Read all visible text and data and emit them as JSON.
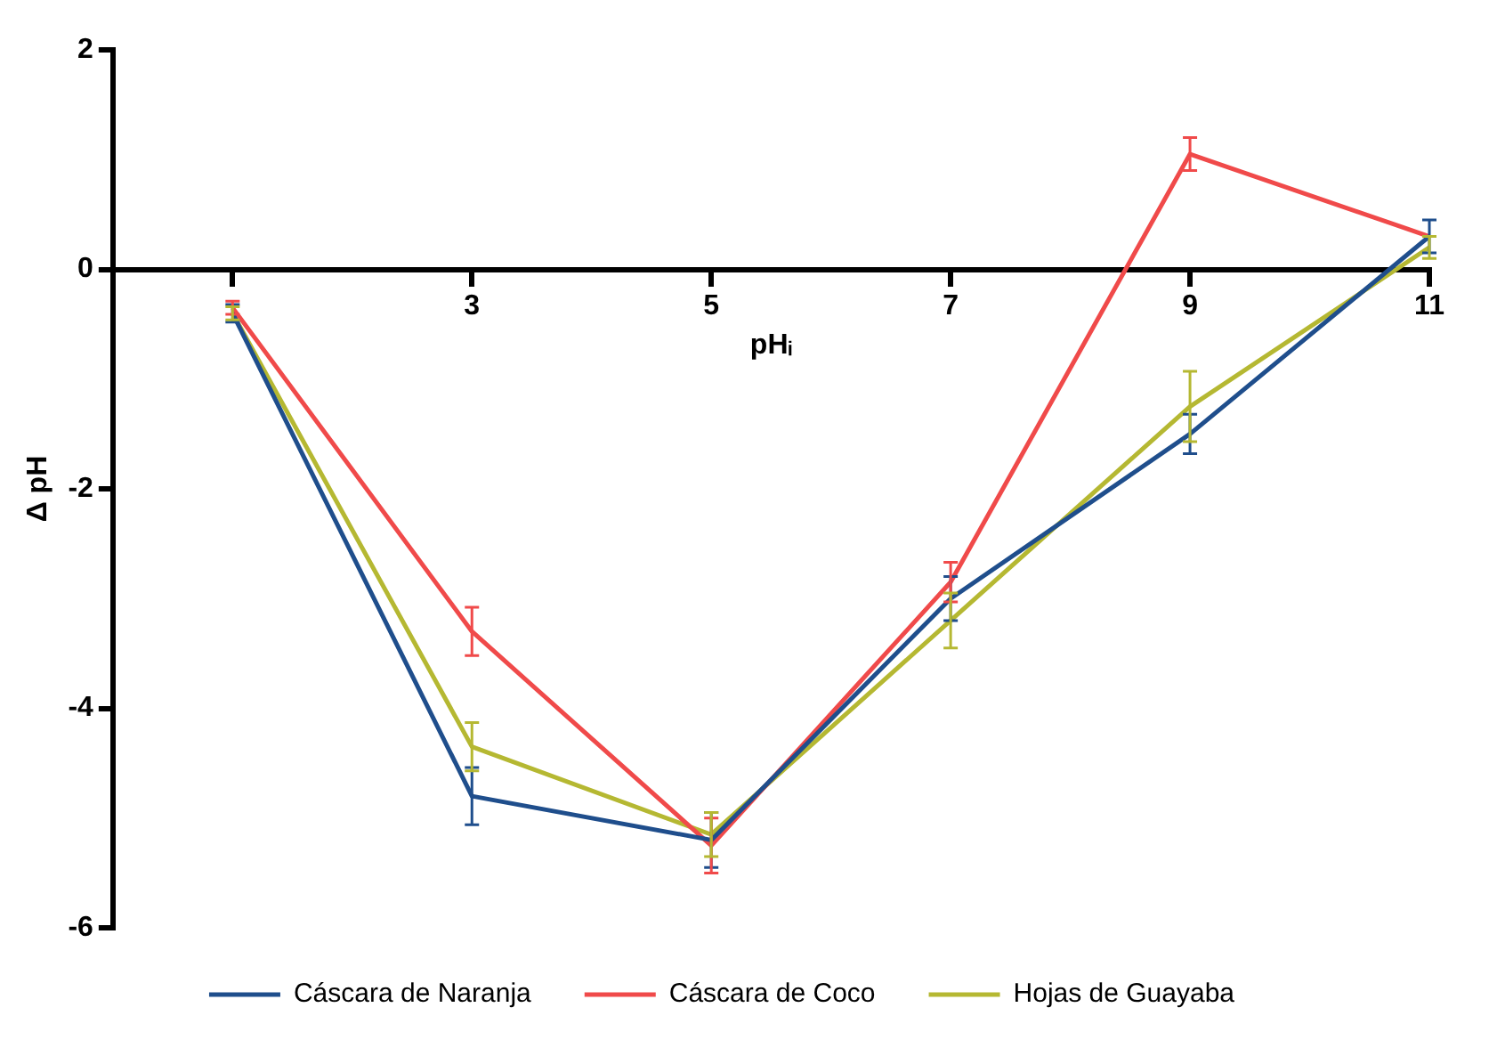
{
  "chart_data": {
    "type": "line",
    "xlabel": "pHᵢ",
    "ylabel": "Δ pH",
    "x": [
      1,
      3,
      5,
      7,
      9,
      11
    ],
    "xlim": [
      0,
      11
    ],
    "xticks": [
      {
        "value": 1,
        "label": null
      },
      3,
      5,
      7,
      9,
      11
    ],
    "ylim": [
      -6,
      2
    ],
    "yticks": [
      -6,
      -4,
      -2,
      0,
      2
    ],
    "grid": false,
    "legend": "bottom",
    "marker": "none",
    "line_style": "solid",
    "series": [
      {
        "name": "Cáscara de Naranja",
        "color": "#1f4e8c",
        "values": [
          -0.4,
          -4.8,
          -5.2,
          -3.0,
          -1.5,
          0.3
        ],
        "errors": [
          0.08,
          0.26,
          0.25,
          0.2,
          0.18,
          0.15
        ]
      },
      {
        "name": "Cáscara de Coco",
        "color": "#f04a4a",
        "values": [
          -0.35,
          -3.3,
          -5.25,
          -2.85,
          1.05,
          0.3
        ],
        "errors": [
          0.06,
          0.22,
          0.25,
          0.18,
          0.15,
          null
        ]
      },
      {
        "name": "Hojas de Guayaba",
        "color": "#b5b832",
        "values": [
          -0.4,
          -4.35,
          -5.15,
          -3.2,
          -1.25,
          0.2
        ],
        "errors": [
          0.06,
          0.22,
          0.2,
          0.25,
          0.32,
          0.1
        ]
      }
    ]
  }
}
